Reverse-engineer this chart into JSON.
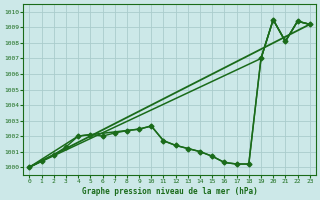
{
  "title": "Graphe pression niveau de la mer (hPa)",
  "bg_color": "#cce8e8",
  "grid_color": "#aacccc",
  "line_color": "#1a6b1a",
  "xlim": [
    -0.5,
    23.5
  ],
  "ylim": [
    999.5,
    1010.5
  ],
  "yticks": [
    1000,
    1001,
    1002,
    1003,
    1004,
    1005,
    1006,
    1007,
    1008,
    1009,
    1010
  ],
  "xticks": [
    0,
    1,
    2,
    3,
    4,
    5,
    6,
    7,
    8,
    9,
    10,
    11,
    12,
    13,
    14,
    15,
    16,
    17,
    18,
    19,
    20,
    21,
    22,
    23
  ],
  "series_main": {
    "x": [
      0,
      1,
      2,
      3,
      4,
      5,
      6,
      7,
      8,
      9,
      10,
      11,
      12,
      13,
      14,
      15,
      16,
      17,
      18,
      19,
      20,
      21,
      22,
      23
    ],
    "y": [
      1000.0,
      1000.4,
      1000.8,
      1001.3,
      1002.0,
      1002.1,
      1002.0,
      1002.2,
      1002.35,
      1002.45,
      1002.65,
      1001.7,
      1001.4,
      1001.2,
      1001.0,
      1000.7,
      1000.3,
      1000.2,
      1000.2,
      1007.0,
      1009.5,
      1008.1,
      1009.4,
      1009.2
    ],
    "marker": "D",
    "markersize": 2.5,
    "linewidth": 1.0
  },
  "series_straight": {
    "x": [
      0,
      23
    ],
    "y": [
      1000.0,
      1009.2
    ],
    "linewidth": 1.3
  },
  "series_upper": {
    "x": [
      0,
      19,
      20,
      21,
      22,
      23
    ],
    "y": [
      1000.0,
      1007.0,
      1009.5,
      1008.1,
      1009.4,
      1009.2
    ],
    "linewidth": 1.1
  },
  "series_lower": {
    "x": [
      0,
      4,
      9,
      10,
      11,
      12,
      13,
      14,
      15,
      16,
      17,
      18,
      19,
      20,
      21,
      22,
      23
    ],
    "y": [
      1000.0,
      1002.0,
      1002.45,
      1002.65,
      1001.7,
      1001.4,
      1001.2,
      1001.0,
      1000.7,
      1000.3,
      1000.2,
      1000.2,
      1007.0,
      1009.5,
      1008.1,
      1009.4,
      1009.2
    ],
    "linewidth": 1.1
  }
}
